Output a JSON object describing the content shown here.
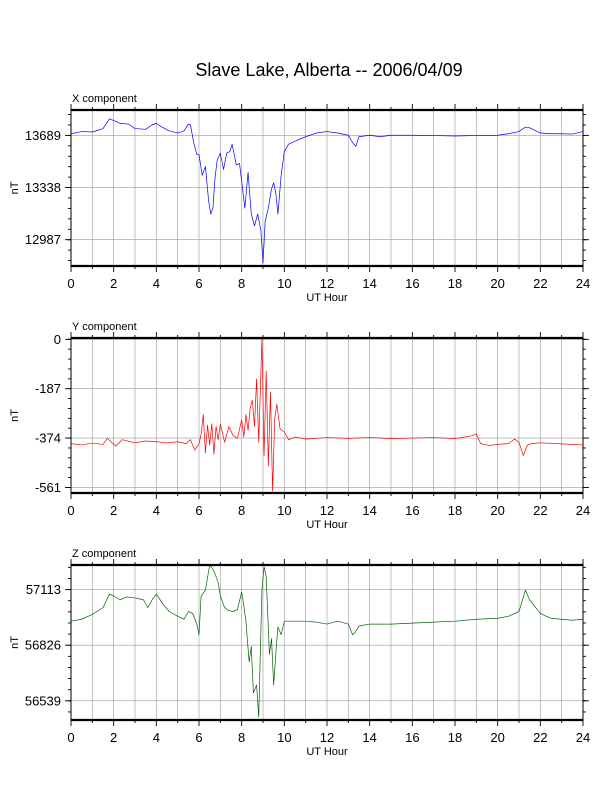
{
  "title": "Slave Lake, Alberta -- 2006/04/09",
  "chart_data": [
    {
      "type": "line",
      "panel_title": "X component",
      "xlabel": "UT Hour",
      "ylabel": "nT",
      "xlim": [
        0,
        24
      ],
      "xticks": [
        0,
        2,
        4,
        6,
        8,
        10,
        12,
        14,
        16,
        18,
        20,
        22,
        24
      ],
      "ylim": [
        12810,
        13860
      ],
      "yticks": [
        12987,
        13338,
        13689
      ],
      "grid": true,
      "series": [
        {
          "color": "#0000ff",
          "points": [
            [
              0,
              13700
            ],
            [
              0.5,
              13715
            ],
            [
              1.0,
              13712
            ],
            [
              1.5,
              13735
            ],
            [
              1.8,
              13800
            ],
            [
              2.0,
              13790
            ],
            [
              2.3,
              13770
            ],
            [
              2.7,
              13765
            ],
            [
              3.0,
              13735
            ],
            [
              3.5,
              13730
            ],
            [
              3.8,
              13760
            ],
            [
              4.0,
              13770
            ],
            [
              4.2,
              13750
            ],
            [
              4.6,
              13720
            ],
            [
              5.0,
              13705
            ],
            [
              5.3,
              13720
            ],
            [
              5.5,
              13765
            ],
            [
              5.6,
              13760
            ],
            [
              5.75,
              13640
            ],
            [
              5.9,
              13560
            ],
            [
              6.0,
              13560
            ],
            [
              6.15,
              13420
            ],
            [
              6.3,
              13480
            ],
            [
              6.45,
              13250
            ],
            [
              6.55,
              13160
            ],
            [
              6.65,
              13200
            ],
            [
              6.75,
              13400
            ],
            [
              6.85,
              13520
            ],
            [
              7.0,
              13570
            ],
            [
              7.15,
              13460
            ],
            [
              7.3,
              13570
            ],
            [
              7.45,
              13580
            ],
            [
              7.55,
              13630
            ],
            [
              7.75,
              13490
            ],
            [
              7.9,
              13500
            ],
            [
              8.0,
              13380
            ],
            [
              8.15,
              13200
            ],
            [
              8.3,
              13440
            ],
            [
              8.45,
              13160
            ],
            [
              8.6,
              13080
            ],
            [
              8.75,
              13160
            ],
            [
              8.9,
              13050
            ],
            [
              9.0,
              12830
            ],
            [
              9.1,
              13110
            ],
            [
              9.25,
              13200
            ],
            [
              9.4,
              13330
            ],
            [
              9.5,
              13370
            ],
            [
              9.6,
              13300
            ],
            [
              9.7,
              13160
            ],
            [
              9.85,
              13420
            ],
            [
              10.0,
              13580
            ],
            [
              10.2,
              13630
            ],
            [
              10.5,
              13650
            ],
            [
              11.0,
              13680
            ],
            [
              11.5,
              13705
            ],
            [
              12.0,
              13715
            ],
            [
              12.5,
              13705
            ],
            [
              13.0,
              13690
            ],
            [
              13.2,
              13640
            ],
            [
              13.35,
              13615
            ],
            [
              13.5,
              13680
            ],
            [
              14.0,
              13690
            ],
            [
              14.5,
              13680
            ],
            [
              15.0,
              13690
            ],
            [
              16.0,
              13690
            ],
            [
              17.0,
              13688
            ],
            [
              18.0,
              13685
            ],
            [
              19.0,
              13688
            ],
            [
              20.0,
              13690
            ],
            [
              20.5,
              13700
            ],
            [
              21.0,
              13715
            ],
            [
              21.3,
              13745
            ],
            [
              21.5,
              13740
            ],
            [
              22.0,
              13705
            ],
            [
              22.5,
              13700
            ],
            [
              23.0,
              13700
            ],
            [
              23.5,
              13698
            ],
            [
              24.0,
              13715
            ]
          ]
        }
      ]
    },
    {
      "type": "line",
      "panel_title": "Y component",
      "xlabel": "UT Hour",
      "ylabel": "nT",
      "xlim": [
        0,
        24
      ],
      "xticks": [
        0,
        2,
        4,
        6,
        8,
        10,
        12,
        14,
        16,
        18,
        20,
        22,
        24
      ],
      "ylim": [
        -582,
        5
      ],
      "yticks": [
        0,
        -187,
        -374,
        -561
      ],
      "grid": true,
      "series": [
        {
          "color": "#ff0000",
          "points": [
            [
              0,
              -395
            ],
            [
              0.5,
              -400
            ],
            [
              1.0,
              -393
            ],
            [
              1.5,
              -398
            ],
            [
              1.7,
              -375
            ],
            [
              1.9,
              -390
            ],
            [
              2.1,
              -405
            ],
            [
              2.4,
              -380
            ],
            [
              3.0,
              -392
            ],
            [
              3.5,
              -385
            ],
            [
              4.0,
              -388
            ],
            [
              4.5,
              -392
            ],
            [
              5.0,
              -388
            ],
            [
              5.4,
              -395
            ],
            [
              5.6,
              -380
            ],
            [
              5.8,
              -420
            ],
            [
              6.0,
              -395
            ],
            [
              6.1,
              -360
            ],
            [
              6.2,
              -285
            ],
            [
              6.3,
              -430
            ],
            [
              6.4,
              -325
            ],
            [
              6.5,
              -400
            ],
            [
              6.6,
              -320
            ],
            [
              6.7,
              -435
            ],
            [
              6.8,
              -330
            ],
            [
              6.9,
              -380
            ],
            [
              7.0,
              -320
            ],
            [
              7.2,
              -390
            ],
            [
              7.4,
              -330
            ],
            [
              7.6,
              -365
            ],
            [
              7.8,
              -375
            ],
            [
              8.0,
              -305
            ],
            [
              8.1,
              -370
            ],
            [
              8.2,
              -285
            ],
            [
              8.3,
              -345
            ],
            [
              8.4,
              -260
            ],
            [
              8.5,
              -230
            ],
            [
              8.6,
              -330
            ],
            [
              8.7,
              -150
            ],
            [
              8.8,
              -390
            ],
            [
              8.95,
              0
            ],
            [
              9.05,
              -440
            ],
            [
              9.15,
              -120
            ],
            [
              9.25,
              -480
            ],
            [
              9.35,
              -200
            ],
            [
              9.45,
              -575
            ],
            [
              9.55,
              -300
            ],
            [
              9.65,
              -245
            ],
            [
              9.8,
              -340
            ],
            [
              10.0,
              -350
            ],
            [
              10.2,
              -380
            ],
            [
              10.5,
              -370
            ],
            [
              11.0,
              -378
            ],
            [
              12.0,
              -372
            ],
            [
              13.0,
              -375
            ],
            [
              14.0,
              -372
            ],
            [
              15.0,
              -376
            ],
            [
              16.0,
              -374
            ],
            [
              17.0,
              -372
            ],
            [
              18.0,
              -376
            ],
            [
              18.8,
              -365
            ],
            [
              19.0,
              -358
            ],
            [
              19.2,
              -395
            ],
            [
              19.6,
              -402
            ],
            [
              20.0,
              -398
            ],
            [
              20.5,
              -395
            ],
            [
              20.8,
              -378
            ],
            [
              21.0,
              -390
            ],
            [
              21.2,
              -440
            ],
            [
              21.4,
              -400
            ],
            [
              21.6,
              -395
            ],
            [
              22.0,
              -392
            ],
            [
              23.0,
              -396
            ],
            [
              24.0,
              -400
            ]
          ]
        }
      ]
    },
    {
      "type": "line",
      "panel_title": "Z component",
      "xlabel": "UT Hour",
      "ylabel": "nT",
      "xlim": [
        0,
        24
      ],
      "xticks": [
        0,
        2,
        4,
        6,
        8,
        10,
        12,
        14,
        16,
        18,
        20,
        22,
        24
      ],
      "ylim": [
        56440,
        57240
      ],
      "yticks": [
        56539,
        56826,
        57113
      ],
      "grid": true,
      "series": [
        {
          "color": "#006400",
          "points": [
            [
              0,
              56950
            ],
            [
              0.5,
              56960
            ],
            [
              1.0,
              56985
            ],
            [
              1.5,
              57020
            ],
            [
              1.8,
              57090
            ],
            [
              2.0,
              57080
            ],
            [
              2.3,
              57060
            ],
            [
              2.6,
              57075
            ],
            [
              3.0,
              57070
            ],
            [
              3.4,
              57060
            ],
            [
              3.6,
              57020
            ],
            [
              3.8,
              57060
            ],
            [
              4.0,
              57090
            ],
            [
              4.3,
              57040
            ],
            [
              4.6,
              57000
            ],
            [
              5.0,
              56975
            ],
            [
              5.3,
              56960
            ],
            [
              5.5,
              57000
            ],
            [
              5.7,
              56990
            ],
            [
              5.9,
              56935
            ],
            [
              6.0,
              56880
            ],
            [
              6.1,
              57080
            ],
            [
              6.3,
              57110
            ],
            [
              6.5,
              57240
            ],
            [
              6.7,
              57210
            ],
            [
              6.9,
              57150
            ],
            [
              7.0,
              57080
            ],
            [
              7.2,
              57020
            ],
            [
              7.4,
              57005
            ],
            [
              7.6,
              57000
            ],
            [
              7.8,
              57010
            ],
            [
              8.0,
              57100
            ],
            [
              8.1,
              57030
            ],
            [
              8.2,
              56950
            ],
            [
              8.35,
              56740
            ],
            [
              8.45,
              56820
            ],
            [
              8.55,
              56580
            ],
            [
              8.7,
              56620
            ],
            [
              8.8,
              56455
            ],
            [
              8.95,
              57110
            ],
            [
              9.05,
              57230
            ],
            [
              9.15,
              57180
            ],
            [
              9.3,
              56780
            ],
            [
              9.4,
              56860
            ],
            [
              9.5,
              56620
            ],
            [
              9.6,
              56780
            ],
            [
              9.7,
              56920
            ],
            [
              9.85,
              56880
            ],
            [
              10.0,
              56950
            ],
            [
              10.5,
              56950
            ],
            [
              11.0,
              56950
            ],
            [
              11.5,
              56945
            ],
            [
              12.0,
              56935
            ],
            [
              12.5,
              56950
            ],
            [
              13.0,
              56935
            ],
            [
              13.2,
              56880
            ],
            [
              13.3,
              56890
            ],
            [
              13.5,
              56925
            ],
            [
              14.0,
              56935
            ],
            [
              15.0,
              56935
            ],
            [
              16.0,
              56940
            ],
            [
              17.0,
              56945
            ],
            [
              18.0,
              56950
            ],
            [
              19.0,
              56960
            ],
            [
              20.0,
              56965
            ],
            [
              20.5,
              56975
            ],
            [
              21.0,
              57000
            ],
            [
              21.3,
              57110
            ],
            [
              21.5,
              57060
            ],
            [
              22.0,
              56990
            ],
            [
              22.5,
              56965
            ],
            [
              23.0,
              56960
            ],
            [
              23.5,
              56955
            ],
            [
              24.0,
              56960
            ]
          ]
        }
      ]
    }
  ]
}
